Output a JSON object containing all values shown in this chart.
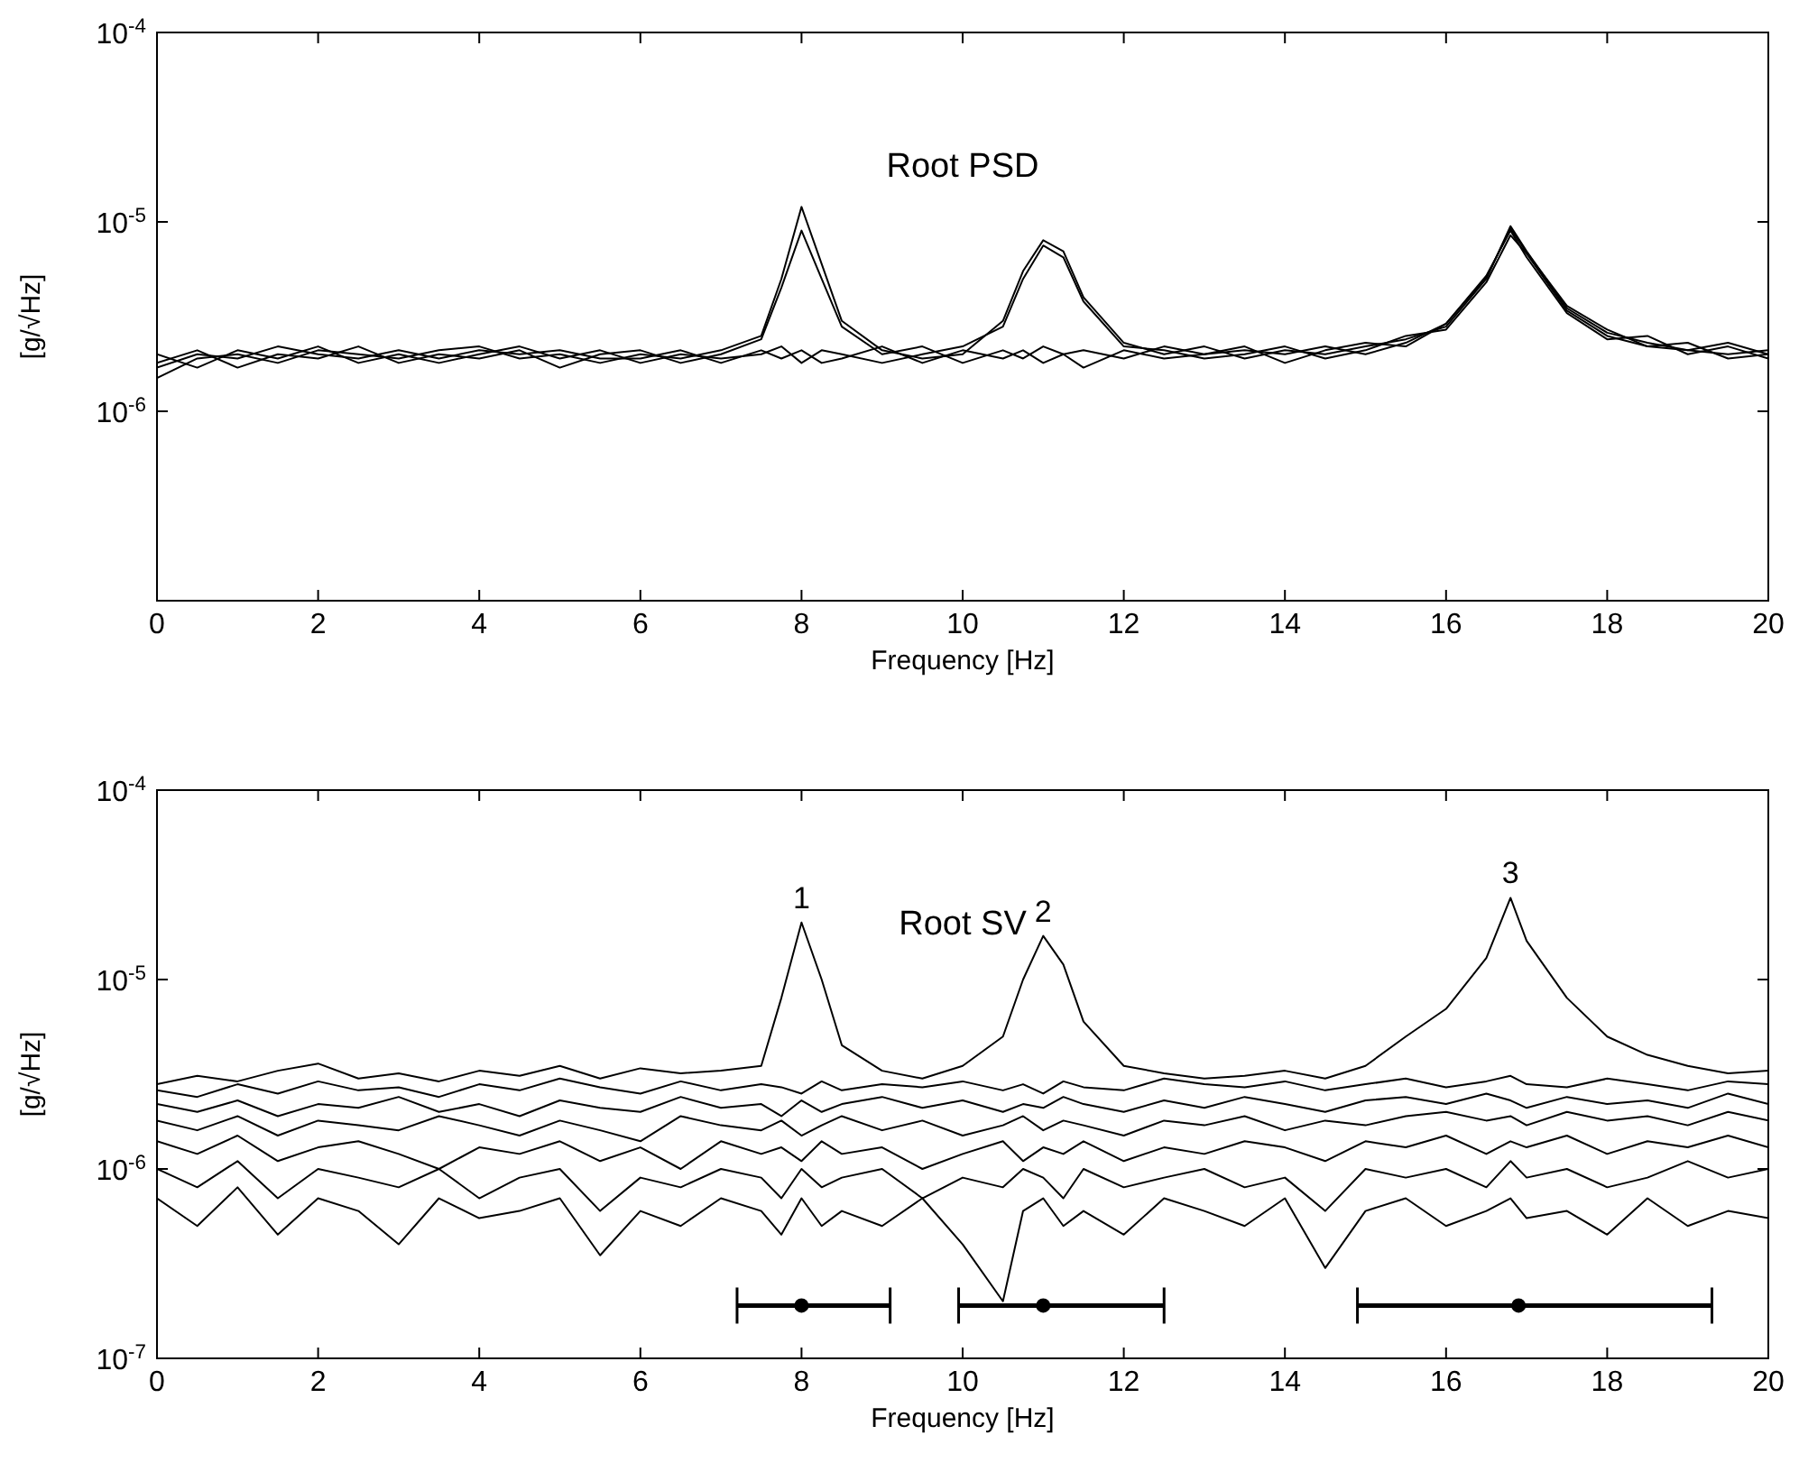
{
  "chart_data": [
    {
      "type": "line",
      "title": "Root PSD",
      "xlabel": "Frequency [Hz]",
      "ylabel": "[g/√Hz]",
      "log": "y",
      "xlim": [
        0,
        20
      ],
      "xticks": [
        0,
        2,
        4,
        6,
        8,
        10,
        12,
        14,
        16,
        18,
        20
      ],
      "ylim": [
        1e-07,
        0.0001
      ],
      "yticks": [
        {
          "value": 1e-07,
          "label": null
        },
        {
          "value": 1e-06,
          "label": "10$^{-6}$"
        },
        {
          "value": 1e-05,
          "label": "10$^{-5}$"
        },
        {
          "value": 0.0001,
          "label": "10$^{-4}$"
        }
      ],
      "x": [
        0,
        0.5,
        1,
        1.5,
        2,
        2.5,
        3,
        3.5,
        4,
        4.5,
        5,
        5.5,
        6,
        6.5,
        7,
        7.5,
        7.75,
        8,
        8.25,
        8.5,
        9,
        9.5,
        10,
        10.5,
        10.75,
        11,
        11.25,
        11.5,
        12,
        12.5,
        13,
        13.5,
        14,
        14.5,
        15,
        15.5,
        16,
        16.5,
        16.8,
        17,
        17.5,
        18,
        18.5,
        19,
        19.5,
        20
      ],
      "series": [
        {
          "color": "#000000",
          "values": [
            1.5e-06,
            1.9e-06,
            2e-06,
            1.8e-06,
            2.1e-06,
            2e-06,
            1.9e-06,
            2.1e-06,
            2.2e-06,
            1.9e-06,
            2e-06,
            1.8e-06,
            2e-06,
            1.9e-06,
            2.1e-06,
            2.5e-06,
            5e-06,
            1.2e-05,
            6e-06,
            3e-06,
            2.1e-06,
            1.9e-06,
            2e-06,
            3e-06,
            5.5e-06,
            8e-06,
            7e-06,
            4e-06,
            2.3e-06,
            2e-06,
            2.2e-06,
            1.9e-06,
            2.1e-06,
            2e-06,
            2.2e-06,
            2.4e-06,
            2.8e-06,
            5e-06,
            9.5e-06,
            7e-06,
            3.5e-06,
            2.6e-06,
            2.3e-06,
            2.1e-06,
            2e-06,
            2.1e-06
          ]
        },
        {
          "color": "#000000",
          "values": [
            1.8e-06,
            2.1e-06,
            1.7e-06,
            2e-06,
            1.9e-06,
            2.2e-06,
            1.8e-06,
            2e-06,
            1.9e-06,
            2.1e-06,
            1.7e-06,
            2e-06,
            2.1e-06,
            1.8e-06,
            2e-06,
            2.4e-06,
            4.5e-06,
            9e-06,
            5e-06,
            2.8e-06,
            2e-06,
            2.2e-06,
            1.8e-06,
            2.1e-06,
            1.9e-06,
            2.2e-06,
            2e-06,
            1.7e-06,
            2.1e-06,
            1.9e-06,
            2e-06,
            2.2e-06,
            1.8e-06,
            2.1e-06,
            2.3e-06,
            2.2e-06,
            2.9e-06,
            5.2e-06,
            9e-06,
            6.5e-06,
            3.3e-06,
            2.4e-06,
            2.5e-06,
            2e-06,
            2.2e-06,
            1.9e-06
          ]
        },
        {
          "color": "#000000",
          "values": [
            2e-06,
            1.7e-06,
            2.1e-06,
            1.9e-06,
            2.2e-06,
            1.8e-06,
            2e-06,
            1.8e-06,
            2e-06,
            2.2e-06,
            1.9e-06,
            2.1e-06,
            1.8e-06,
            2e-06,
            1.9e-06,
            2e-06,
            2.2e-06,
            1.8e-06,
            2.1e-06,
            2e-06,
            1.8e-06,
            2e-06,
            2.2e-06,
            2.8e-06,
            5e-06,
            7.5e-06,
            6.5e-06,
            3.8e-06,
            2.2e-06,
            2.1e-06,
            1.9e-06,
            2e-06,
            2.2e-06,
            1.9e-06,
            2.1e-06,
            2.5e-06,
            2.7e-06,
            4.8e-06,
            8.5e-06,
            6.8e-06,
            3.4e-06,
            2.5e-06,
            2.2e-06,
            2.3e-06,
            1.9e-06,
            2e-06
          ]
        },
        {
          "color": "#000000",
          "values": [
            1.7e-06,
            2e-06,
            1.9e-06,
            2.2e-06,
            2e-06,
            1.9e-06,
            2.1e-06,
            1.9e-06,
            2.1e-06,
            2e-06,
            2.1e-06,
            1.9e-06,
            1.9e-06,
            2.1e-06,
            1.8e-06,
            2.1e-06,
            1.9e-06,
            2.1e-06,
            1.8e-06,
            1.9e-06,
            2.2e-06,
            1.8e-06,
            2.1e-06,
            1.9e-06,
            2.1e-06,
            1.8e-06,
            2e-06,
            2.1e-06,
            1.9e-06,
            2.2e-06,
            2e-06,
            2.1e-06,
            2e-06,
            2.2e-06,
            2e-06,
            2.3e-06,
            2.9e-06,
            5.1e-06,
            9.2e-06,
            6.9e-06,
            3.6e-06,
            2.7e-06,
            2.2e-06,
            2.1e-06,
            2.3e-06,
            2e-06
          ]
        }
      ]
    },
    {
      "type": "line",
      "title": "Root SV",
      "xlabel": "Frequency [Hz]",
      "ylabel": "[g/√Hz]",
      "log": "y",
      "xlim": [
        0,
        20
      ],
      "xticks": [
        0,
        2,
        4,
        6,
        8,
        10,
        12,
        14,
        16,
        18,
        20
      ],
      "ylim": [
        1e-07,
        0.0001
      ],
      "yticks": [
        {
          "value": 1e-07,
          "label": "10$^{-7}$"
        },
        {
          "value": 1e-06,
          "label": "10$^{-6}$"
        },
        {
          "value": 1e-05,
          "label": "10$^{-5}$"
        },
        {
          "value": 0.0001,
          "label": "10$^{-4}$"
        }
      ],
      "annotations": [
        {
          "text": "1",
          "x": 8,
          "y": 2e-05
        },
        {
          "text": "2",
          "x": 11,
          "y": 1.7e-05
        },
        {
          "text": "3",
          "x": 16.8,
          "y": 2.7e-05
        }
      ],
      "x": [
        0,
        0.5,
        1,
        1.5,
        2,
        2.5,
        3,
        3.5,
        4,
        4.5,
        5,
        5.5,
        6,
        6.5,
        7,
        7.5,
        7.75,
        8,
        8.25,
        8.5,
        9,
        9.5,
        10,
        10.5,
        10.75,
        11,
        11.25,
        11.5,
        12,
        12.5,
        13,
        13.5,
        14,
        14.5,
        15,
        15.5,
        16,
        16.5,
        16.8,
        17,
        17.5,
        18,
        18.5,
        19,
        19.5,
        20
      ],
      "series": [
        {
          "color": "#000000",
          "values": [
            2.8e-06,
            3.1e-06,
            2.9e-06,
            3.3e-06,
            3.6e-06,
            3e-06,
            3.2e-06,
            2.9e-06,
            3.3e-06,
            3.1e-06,
            3.5e-06,
            3e-06,
            3.4e-06,
            3.2e-06,
            3.3e-06,
            3.5e-06,
            8e-06,
            2e-05,
            1e-05,
            4.5e-06,
            3.3e-06,
            3e-06,
            3.5e-06,
            5e-06,
            1e-05,
            1.7e-05,
            1.2e-05,
            6e-06,
            3.5e-06,
            3.2e-06,
            3e-06,
            3.1e-06,
            3.3e-06,
            3e-06,
            3.5e-06,
            5e-06,
            7e-06,
            1.3e-05,
            2.7e-05,
            1.6e-05,
            8e-06,
            5e-06,
            4e-06,
            3.5e-06,
            3.2e-06,
            3.3e-06
          ]
        },
        {
          "color": "#000000",
          "values": [
            2.6e-06,
            2.4e-06,
            2.8e-06,
            2.5e-06,
            2.9e-06,
            2.6e-06,
            2.7e-06,
            2.4e-06,
            2.8e-06,
            2.6e-06,
            3e-06,
            2.7e-06,
            2.5e-06,
            2.9e-06,
            2.6e-06,
            2.8e-06,
            2.7e-06,
            2.5e-06,
            2.9e-06,
            2.6e-06,
            2.8e-06,
            2.7e-06,
            2.9e-06,
            2.6e-06,
            2.8e-06,
            2.5e-06,
            2.9e-06,
            2.7e-06,
            2.6e-06,
            3e-06,
            2.8e-06,
            2.7e-06,
            2.9e-06,
            2.6e-06,
            2.8e-06,
            3e-06,
            2.7e-06,
            2.9e-06,
            3.1e-06,
            2.8e-06,
            2.7e-06,
            3e-06,
            2.8e-06,
            2.6e-06,
            2.9e-06,
            2.8e-06
          ]
        },
        {
          "color": "#000000",
          "values": [
            2.2e-06,
            2e-06,
            2.3e-06,
            1.9e-06,
            2.2e-06,
            2.1e-06,
            2.4e-06,
            2e-06,
            2.2e-06,
            1.9e-06,
            2.3e-06,
            2.1e-06,
            2e-06,
            2.4e-06,
            2.1e-06,
            2.2e-06,
            1.9e-06,
            2.3e-06,
            2e-06,
            2.2e-06,
            2.4e-06,
            2.1e-06,
            2.3e-06,
            2e-06,
            2.2e-06,
            2.1e-06,
            2.4e-06,
            2.2e-06,
            2e-06,
            2.3e-06,
            2.1e-06,
            2.4e-06,
            2.2e-06,
            2e-06,
            2.3e-06,
            2.4e-06,
            2.2e-06,
            2.5e-06,
            2.3e-06,
            2.1e-06,
            2.4e-06,
            2.2e-06,
            2.3e-06,
            2.1e-06,
            2.5e-06,
            2.2e-06
          ]
        },
        {
          "color": "#000000",
          "values": [
            1.8e-06,
            1.6e-06,
            1.9e-06,
            1.5e-06,
            1.8e-06,
            1.7e-06,
            1.6e-06,
            1.9e-06,
            1.7e-06,
            1.5e-06,
            1.8e-06,
            1.6e-06,
            1.4e-06,
            1.9e-06,
            1.7e-06,
            1.6e-06,
            1.8e-06,
            1.5e-06,
            1.7e-06,
            1.9e-06,
            1.6e-06,
            1.8e-06,
            1.5e-06,
            1.7e-06,
            1.9e-06,
            1.6e-06,
            1.8e-06,
            1.7e-06,
            1.5e-06,
            1.8e-06,
            1.7e-06,
            1.9e-06,
            1.6e-06,
            1.8e-06,
            1.7e-06,
            1.9e-06,
            2e-06,
            1.8e-06,
            1.9e-06,
            1.7e-06,
            2e-06,
            1.8e-06,
            1.9e-06,
            1.7e-06,
            2e-06,
            1.8e-06
          ]
        },
        {
          "color": "#000000",
          "values": [
            1.4e-06,
            1.2e-06,
            1.5e-06,
            1.1e-06,
            1.3e-06,
            1.4e-06,
            1.2e-06,
            1e-06,
            1.3e-06,
            1.2e-06,
            1.4e-06,
            1.1e-06,
            1.3e-06,
            1e-06,
            1.4e-06,
            1.2e-06,
            1.3e-06,
            1.1e-06,
            1.4e-06,
            1.2e-06,
            1.3e-06,
            1e-06,
            1.2e-06,
            1.4e-06,
            1.1e-06,
            1.3e-06,
            1.2e-06,
            1.4e-06,
            1.1e-06,
            1.3e-06,
            1.2e-06,
            1.4e-06,
            1.3e-06,
            1.1e-06,
            1.4e-06,
            1.3e-06,
            1.5e-06,
            1.2e-06,
            1.4e-06,
            1.3e-06,
            1.5e-06,
            1.2e-06,
            1.4e-06,
            1.3e-06,
            1.5e-06,
            1.3e-06
          ]
        },
        {
          "color": "#000000",
          "values": [
            1e-06,
            8e-07,
            1.1e-06,
            7e-07,
            1e-06,
            9e-07,
            8e-07,
            1e-06,
            7e-07,
            9e-07,
            1e-06,
            6e-07,
            9e-07,
            8e-07,
            1e-06,
            9e-07,
            7e-07,
            1e-06,
            8e-07,
            9e-07,
            1e-06,
            7e-07,
            9e-07,
            8e-07,
            1e-06,
            9e-07,
            7e-07,
            1e-06,
            8e-07,
            9e-07,
            1e-06,
            8e-07,
            9e-07,
            6e-07,
            1e-06,
            9e-07,
            1e-06,
            8e-07,
            1.1e-06,
            9e-07,
            1e-06,
            8e-07,
            9e-07,
            1.1e-06,
            9e-07,
            1e-06
          ]
        },
        {
          "color": "#000000",
          "values": [
            7e-07,
            5e-07,
            8e-07,
            4.5e-07,
            7e-07,
            6e-07,
            4e-07,
            7e-07,
            5.5e-07,
            6e-07,
            7e-07,
            3.5e-07,
            6e-07,
            5e-07,
            7e-07,
            6e-07,
            4.5e-07,
            7e-07,
            5e-07,
            6e-07,
            5e-07,
            7e-07,
            4e-07,
            2e-07,
            6e-07,
            7e-07,
            5e-07,
            6e-07,
            4.5e-07,
            7e-07,
            6e-07,
            5e-07,
            7e-07,
            3e-07,
            6e-07,
            7e-07,
            5e-07,
            6e-07,
            7e-07,
            5.5e-07,
            6e-07,
            4.5e-07,
            7e-07,
            5e-07,
            6e-07,
            5.5e-07
          ]
        },
        {
          "type": "scatter",
          "marker": "circle",
          "color": "#000000",
          "x": [
            8,
            11,
            16.9
          ],
          "values": [
            1.9e-07,
            1.9e-07,
            1.9e-07
          ],
          "xerrors": [
            [
              7.2,
              9.1
            ],
            [
              9.95,
              12.5
            ],
            [
              14.9,
              19.3
            ]
          ]
        }
      ]
    }
  ]
}
